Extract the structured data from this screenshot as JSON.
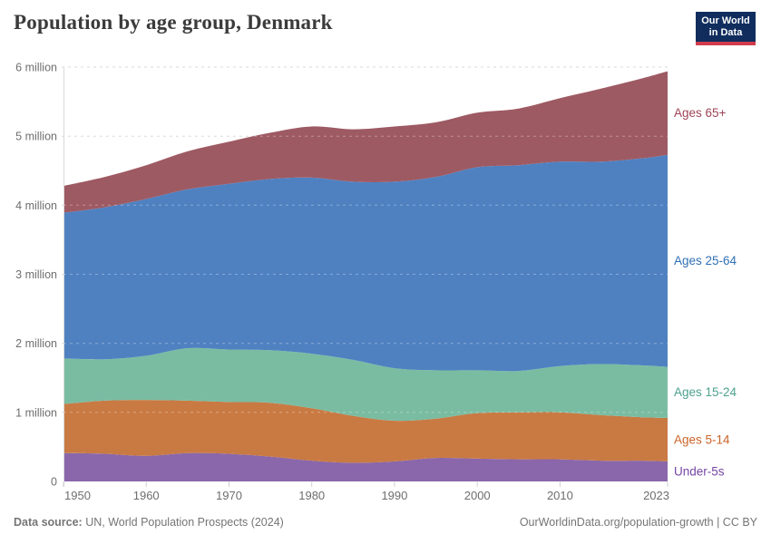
{
  "header": {
    "title": "Population by age group, Denmark"
  },
  "logo": {
    "line1": "Our World",
    "line2": "in Data",
    "bg_color": "#102D5E",
    "bar_color": "#D13B4C"
  },
  "chart_data": {
    "type": "area",
    "stacked": true,
    "title": "Population by age group, Denmark",
    "unit": "million people",
    "grid": "dashed horizontal",
    "legend_position": "right-edge labels",
    "xlim": [
      1950,
      2023
    ],
    "ylim": [
      0,
      6
    ],
    "x": [
      1950,
      1955,
      1960,
      1965,
      1970,
      1975,
      1980,
      1985,
      1990,
      1995,
      2000,
      2005,
      2010,
      2015,
      2020,
      2023
    ],
    "series": [
      {
        "name": "under-5s",
        "label": "Under-5s",
        "color": "#8A67AB",
        "label_color": "#7646A5",
        "values": [
          0.41,
          0.4,
          0.37,
          0.41,
          0.4,
          0.36,
          0.3,
          0.27,
          0.29,
          0.34,
          0.33,
          0.32,
          0.32,
          0.3,
          0.3,
          0.29
        ]
      },
      {
        "name": "ages-5-14",
        "label": "Ages 5-14",
        "color": "#C97A43",
        "label_color": "#CB6328",
        "values": [
          0.71,
          0.77,
          0.81,
          0.76,
          0.75,
          0.78,
          0.76,
          0.68,
          0.59,
          0.57,
          0.66,
          0.68,
          0.68,
          0.66,
          0.63,
          0.63
        ]
      },
      {
        "name": "ages-15-24",
        "label": "Ages 15-24",
        "color": "#7ABCA2",
        "label_color": "#4BA18B",
        "values": [
          0.66,
          0.6,
          0.64,
          0.76,
          0.76,
          0.76,
          0.79,
          0.81,
          0.76,
          0.7,
          0.62,
          0.6,
          0.67,
          0.74,
          0.75,
          0.74
        ]
      },
      {
        "name": "ages-25-64",
        "label": "Ages 25-64",
        "color": "#4F81C1",
        "label_color": "#3070B5",
        "values": [
          2.11,
          2.2,
          2.27,
          2.3,
          2.4,
          2.48,
          2.55,
          2.58,
          2.7,
          2.8,
          2.94,
          2.98,
          2.96,
          2.93,
          3.0,
          3.07
        ]
      },
      {
        "name": "ages-65plus",
        "label": "Ages 65+",
        "color": "#9E5A63",
        "label_color": "#9E4357",
        "values": [
          0.39,
          0.44,
          0.49,
          0.55,
          0.61,
          0.67,
          0.74,
          0.76,
          0.8,
          0.79,
          0.79,
          0.82,
          0.92,
          1.06,
          1.16,
          1.21
        ]
      }
    ],
    "yticks": [
      {
        "v": 0,
        "label": "0"
      },
      {
        "v": 1,
        "label": "1 million"
      },
      {
        "v": 2,
        "label": "2 million"
      },
      {
        "v": 3,
        "label": "3 million"
      },
      {
        "v": 4,
        "label": "4 million"
      },
      {
        "v": 5,
        "label": "5 million"
      },
      {
        "v": 6,
        "label": "6 million"
      }
    ],
    "xticks": [
      {
        "v": 1950,
        "label": "1950"
      },
      {
        "v": 1960,
        "label": "1960"
      },
      {
        "v": 1970,
        "label": "1970"
      },
      {
        "v": 1980,
        "label": "1980"
      },
      {
        "v": 1990,
        "label": "1990"
      },
      {
        "v": 2000,
        "label": "2000"
      },
      {
        "v": 2010,
        "label": "2010"
      },
      {
        "v": 2023,
        "label": "2023"
      }
    ],
    "grid_color": "#D8D8D8",
    "axis_text_color": "#6E6E6E"
  },
  "footer": {
    "source_label": "Data source:",
    "source_text": " UN, World Population Prospects (2024)",
    "right_text": "OurWorldinData.org/population-growth | CC BY"
  }
}
